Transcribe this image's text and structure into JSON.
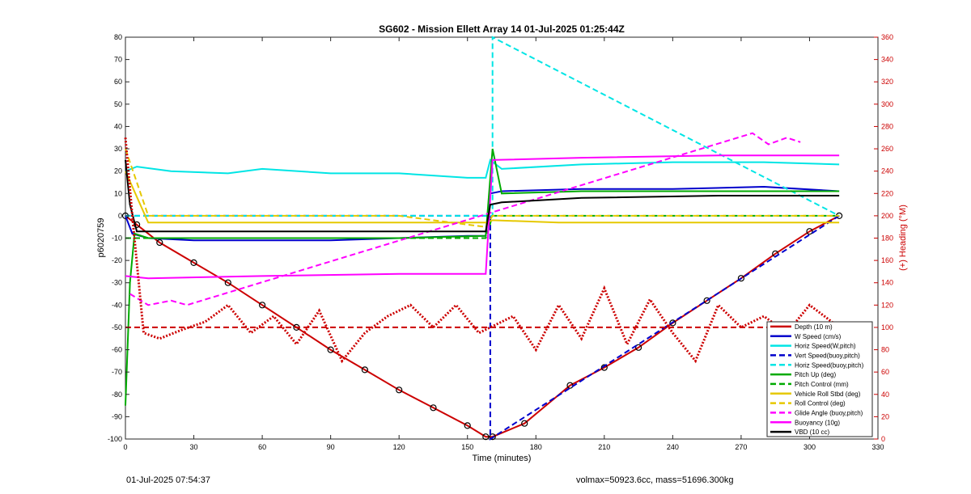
{
  "chart_data": {
    "type": "line",
    "title": "SG602 - Mission Ellett Array 14 01-Jul-2025 01:25:44Z",
    "xlabel": "Time (minutes)",
    "ylabel_left": "p6020759",
    "ylabel_right": "(+) Heading (°M)",
    "xlim": [
      0,
      330
    ],
    "ylim_left": [
      -100,
      80
    ],
    "ylim_right": [
      0,
      360
    ],
    "xticks": [
      0,
      30,
      60,
      90,
      120,
      150,
      180,
      210,
      240,
      270,
      300,
      330
    ],
    "yticks_left": [
      -100,
      -90,
      -80,
      -70,
      -60,
      -50,
      -40,
      -30,
      -20,
      -10,
      0,
      10,
      20,
      30,
      40,
      50,
      60,
      70,
      80
    ],
    "yticks_right": [
      0,
      20,
      40,
      60,
      80,
      100,
      120,
      140,
      160,
      180,
      200,
      220,
      240,
      260,
      280,
      300,
      320,
      340,
      360
    ],
    "grid": false,
    "legend_position": "bottom-right",
    "series": [
      {
        "name": "Depth (10 m)",
        "color": "#cc0000",
        "style": "solid-markers",
        "x": [
          0,
          5,
          15,
          30,
          45,
          60,
          75,
          90,
          105,
          120,
          135,
          150,
          158,
          161,
          175,
          195,
          210,
          225,
          240,
          255,
          270,
          285,
          300,
          313
        ],
        "y": [
          0,
          -4,
          -12,
          -21,
          -30,
          -40,
          -50,
          -60,
          -69,
          -78,
          -86,
          -94,
          -99,
          -99,
          -93,
          -76,
          -68,
          -59,
          -48,
          -38,
          -28,
          -17,
          -7,
          0
        ]
      },
      {
        "name": "W Speed (cm/s)",
        "color": "#0000cc",
        "style": "solid",
        "x": [
          0,
          3,
          10,
          30,
          60,
          90,
          120,
          150,
          158,
          160,
          165,
          200,
          240,
          280,
          313
        ],
        "y": [
          0,
          -8,
          -10,
          -11,
          -11,
          -11,
          -10,
          -9,
          -9,
          10,
          11,
          12,
          12,
          13,
          11
        ]
      },
      {
        "name": "Horiz Speed(W,pitch)",
        "color": "#00e5e5",
        "style": "solid",
        "x": [
          0,
          5,
          20,
          45,
          60,
          90,
          120,
          150,
          158,
          160,
          165,
          200,
          240,
          280,
          313
        ],
        "y": [
          20,
          22,
          20,
          19,
          21,
          19,
          19,
          17,
          17,
          25,
          21,
          23,
          24,
          24,
          23
        ]
      },
      {
        "name": "Vert Speed(buoy,pitch)",
        "color": "#0000cc",
        "style": "dashed",
        "x": [
          0,
          160,
          160,
          313
        ],
        "y": [
          0,
          0,
          -100,
          0
        ]
      },
      {
        "name": "Horiz Speed(buoy,pitch)",
        "color": "#00e5e5",
        "style": "dashed",
        "x": [
          0,
          161,
          161,
          313
        ],
        "y": [
          0,
          0,
          80,
          0
        ]
      },
      {
        "name": "Pitch Up (deg)",
        "color": "#00aa00",
        "style": "solid",
        "x": [
          0,
          2,
          4,
          10,
          60,
          120,
          158,
          161,
          165,
          200,
          240,
          313
        ],
        "y": [
          -85,
          -30,
          -8,
          -10,
          -10,
          -10,
          -9,
          30,
          10,
          11,
          11,
          11
        ]
      },
      {
        "name": "Pitch Control (mm)",
        "color": "#00aa00",
        "style": "dashed",
        "x": [
          0,
          10,
          60,
          158,
          161,
          313
        ],
        "y": [
          -10,
          -10,
          -10,
          -10,
          0,
          0
        ]
      },
      {
        "name": "Vehicle Roll Stbd (deg)",
        "color": "#e6c800",
        "style": "solid",
        "x": [
          0,
          10,
          30,
          60,
          90,
          120,
          158,
          161,
          190,
          220,
          260,
          313
        ],
        "y": [
          20,
          -3,
          -3,
          -3,
          -3,
          -3,
          -3,
          -2,
          -3,
          -3,
          -3,
          -3
        ]
      },
      {
        "name": "Roll Control (deg)",
        "color": "#e6c800",
        "style": "dashed",
        "x": [
          0,
          10,
          60,
          120,
          158,
          161,
          200,
          260,
          313
        ],
        "y": [
          30,
          0,
          0,
          0,
          -5,
          0,
          0,
          0,
          0
        ]
      },
      {
        "name": "Glide Angle (buoy,pitch)",
        "color": "#ff00ff",
        "style": "dashed",
        "x": [
          2,
          10,
          20,
          27,
          275,
          282,
          290,
          296
        ],
        "y": [
          -35,
          -40,
          -38,
          -40,
          37,
          32,
          35,
          33
        ]
      },
      {
        "name": "Buoyancy (10g)",
        "color": "#ff00ff",
        "style": "solid",
        "x": [
          0,
          10,
          60,
          120,
          158,
          161,
          200,
          260,
          313
        ],
        "y": [
          -27,
          -28,
          -27,
          -26,
          -26,
          25,
          26,
          27,
          27
        ]
      },
      {
        "name": "VBD (10 cc)",
        "color": "#000000",
        "style": "solid",
        "x": [
          0,
          2,
          5,
          158,
          160,
          165,
          200,
          260,
          313
        ],
        "y": [
          25,
          5,
          -7,
          -7,
          5,
          6,
          8,
          9,
          9
        ]
      },
      {
        "name": "Heading",
        "color": "#cc0000",
        "style": "dotted",
        "axis": "right",
        "x": [
          0,
          3,
          8,
          15,
          25,
          35,
          45,
          55,
          65,
          75,
          85,
          95,
          105,
          115,
          125,
          135,
          145,
          155,
          160,
          170,
          180,
          190,
          200,
          210,
          220,
          230,
          240,
          250,
          260,
          270,
          280,
          290,
          300,
          313
        ],
        "y": [
          270,
          200,
          95,
          90,
          98,
          105,
          120,
          95,
          110,
          85,
          115,
          70,
          95,
          110,
          120,
          100,
          120,
          95,
          100,
          110,
          80,
          120,
          90,
          135,
          85,
          125,
          95,
          70,
          120,
          100,
          110,
          95,
          120,
          100
        ]
      },
      {
        "name": "Heading (dashed)",
        "color": "#cc0000",
        "style": "dashed",
        "axis": "right",
        "x": [
          0,
          313
        ],
        "y": [
          100,
          100
        ]
      }
    ],
    "legend": [
      "Depth (10 m)",
      "W Speed (cm/s)",
      "Horiz Speed(W,pitch)",
      "Vert Speed(buoy,pitch)",
      "Horiz Speed(buoy,pitch)",
      "Pitch Up (deg)",
      "Pitch Control (mm)",
      "Vehicle Roll Stbd (deg)",
      "Roll Control (deg)",
      "Glide Angle (buoy,pitch)",
      "Buoyancy (10g)",
      "VBD (10 cc)"
    ]
  },
  "footer": {
    "left": "01-Jul-2025 07:54:37",
    "right": "volmax=50923.6cc, mass=51696.300kg"
  }
}
